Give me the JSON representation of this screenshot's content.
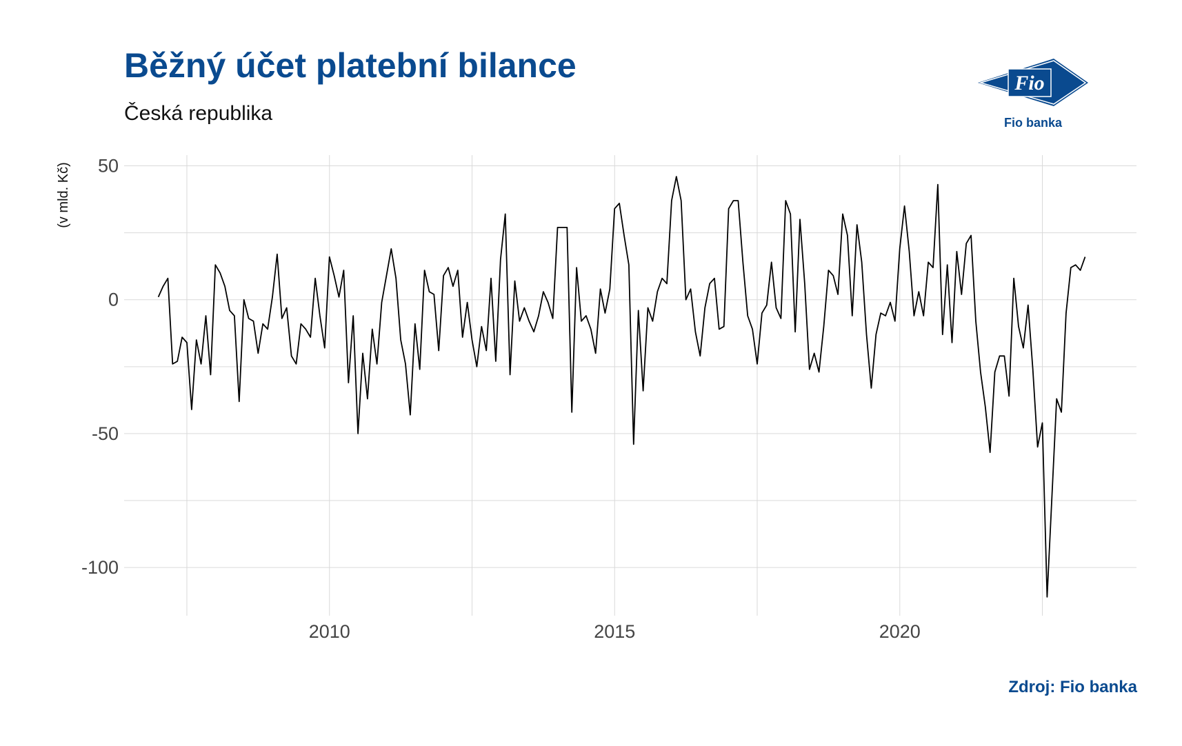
{
  "title": "Běžný účet platební bilance",
  "subtitle": "Česká republika",
  "source": "Zdroj: Fio banka",
  "logo": {
    "mark_text": "Fio",
    "caption": "Fio banka",
    "color": "#0a4a8f"
  },
  "colors": {
    "title": "#0a4a8f",
    "line": "#000000",
    "grid": "#d9d9d9"
  },
  "chart_data": {
    "type": "line",
    "ylabel": "(v mld. Kč)",
    "xlabel": "",
    "grid": true,
    "legend": "none",
    "xlim": [
      2006.4,
      2024.15
    ],
    "ylim": [
      -118,
      54
    ],
    "x_ticks": [
      2010,
      2015,
      2020
    ],
    "y_ticks": [
      50,
      0,
      -50,
      -100
    ],
    "x_start": 2007.0,
    "x_step": 0.08333,
    "series": [
      {
        "values": [
          1,
          5,
          8,
          -24,
          -23,
          -14,
          -16,
          -41,
          -15,
          -24,
          -6,
          -28,
          13,
          10,
          5,
          -4,
          -6,
          -38,
          0,
          -7,
          -8,
          -20,
          -9,
          -11,
          1,
          17,
          -7,
          -3,
          -21,
          -24,
          -9,
          -11,
          -14,
          8,
          -6,
          -18,
          16,
          9,
          1,
          11,
          -31,
          -6,
          -50,
          -20,
          -37,
          -11,
          -24,
          -1,
          9,
          19,
          8,
          -15,
          -24,
          -43,
          -9,
          -26,
          11,
          3,
          2,
          -19,
          9,
          12,
          5,
          11,
          -14,
          -1,
          -15,
          -25,
          -10,
          -19,
          8,
          -23,
          15,
          32,
          -28,
          7,
          -8,
          -3,
          -8,
          -12,
          -6,
          3,
          -1,
          -7,
          27,
          27,
          27,
          -42,
          12,
          -8,
          -6,
          -11,
          -20,
          4,
          -5,
          4,
          34,
          36,
          24,
          13,
          -54,
          -4,
          -34,
          -3,
          -8,
          3,
          8,
          6,
          37,
          46,
          37,
          0,
          4,
          -12,
          -21,
          -3,
          6,
          8,
          -11,
          -10,
          34,
          37,
          37,
          14,
          -6,
          -11,
          -24,
          -5,
          -2,
          14,
          -3,
          -7,
          37,
          32,
          -12,
          30,
          6,
          -26,
          -20,
          -27,
          -10,
          11,
          9,
          2,
          32,
          24,
          -6,
          28,
          14,
          -13,
          -33,
          -13,
          -5,
          -6,
          -1,
          -8,
          19,
          35,
          18,
          -6,
          3,
          -6,
          14,
          12,
          43,
          -13,
          13,
          -16,
          18,
          2,
          21,
          24,
          -8,
          -27,
          -40,
          -57,
          -27,
          -21,
          -21,
          -36,
          8,
          -10,
          -18,
          -2,
          -26,
          -55,
          -46,
          -111,
          -74,
          -37,
          -42,
          -5,
          12,
          13,
          11,
          16
        ]
      }
    ]
  }
}
